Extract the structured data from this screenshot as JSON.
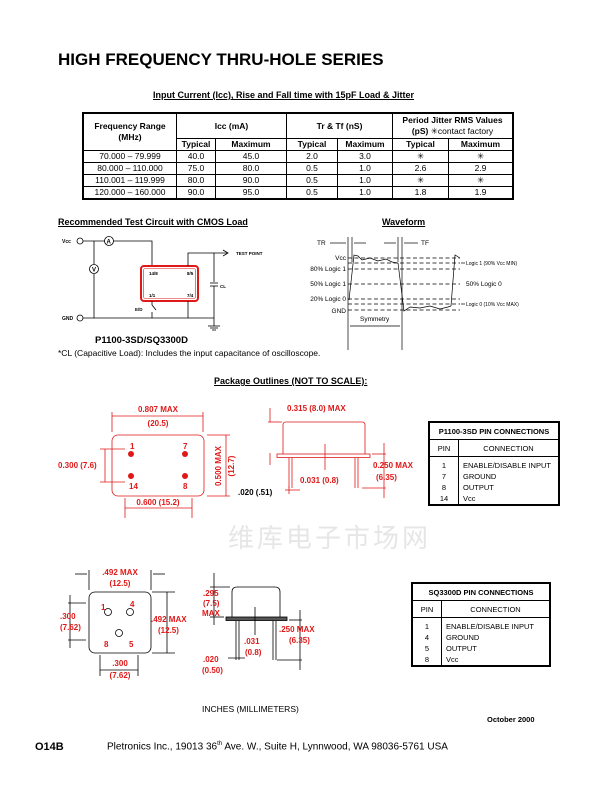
{
  "title": "HIGH FREQUENCY THRU-HOLE SERIES",
  "watermark": "维库电子市场网",
  "spec_table": {
    "caption": "Input Current (Icc), Rise and Fall time with 15pF Load & Jitter",
    "headers": {
      "freq": "Frequency Range",
      "freq_unit": "(MHz)",
      "icc": "Icc (mA)",
      "trtf": "Tr & Tf (nS)",
      "jitter": "Period Jitter RMS Values",
      "jitter_unit": "(pS)",
      "jitter_note": "✳contact factory",
      "typical": "Typical",
      "maximum": "Maximum"
    },
    "rows": [
      [
        "70.000 – 79.999",
        "40.0",
        "45.0",
        "2.0",
        "3.0",
        "✳",
        "✳"
      ],
      [
        "80.000 – 110.000",
        "75.0",
        "80.0",
        "0.5",
        "1.0",
        "2.6",
        "2.9"
      ],
      [
        "110.001 – 119.999",
        "80.0",
        "90.0",
        "0.5",
        "1.0",
        "✳",
        "✳"
      ],
      [
        "120.000 – 160.000",
        "90.0",
        "95.0",
        "0.5",
        "1.0",
        "1.8",
        "1.9"
      ]
    ]
  },
  "test_circuit": {
    "heading": "Recommended Test Circuit with CMOS Load",
    "vcc": "Vcc",
    "gnd": "GND",
    "ammeter": "A",
    "voltmeter": "V",
    "test_point": "TEST POINT",
    "cl": "CL",
    "switch": "E/D",
    "pins": [
      "14/8",
      "8/5",
      "1/1",
      "7/4"
    ],
    "part": "P1100-3SD/SQ3300D",
    "note": "*CL (Capacitive Load): Includes the input capacitance of oscilloscope."
  },
  "waveform": {
    "heading": "Waveform",
    "tr": "TR",
    "tf": "TF",
    "levels": [
      "Vcc",
      "80% Logic 1",
      "50% Logic 1",
      "20% Logic 0",
      "GND"
    ],
    "right_labels": [
      "Logic 1 (90% Vcc MIN)",
      "50% Logic 0",
      "Logic 0 (10% Vcc MAX)"
    ],
    "symmetry": "Symmetry"
  },
  "package": {
    "heading": "Package Outlines (NOT TO SCALE):",
    "p1100": {
      "width": "0.807 MAX",
      "width_mm": "(20.5)",
      "height": "0.500 MAX",
      "height_mm": "(12.7)",
      "pin_spacing_v": "0.300 (7.6)",
      "pin_spacing_h": "0.600 (15.2)",
      "body_height": "0.315 (8.0) MAX",
      "standoff": "0.031 (0.8)",
      "lead_len": "0.250 MAX",
      "lead_len_mm": "(6.35)",
      "lead_dia": ".020 (.51)",
      "pin_labels": [
        "1",
        "7",
        "14",
        "8"
      ]
    },
    "sq3300": {
      "width": ".492 MAX",
      "width_mm": "(12.5)",
      "height": ".492 MAX",
      "height_mm": "(12.5)",
      "pin_spacing_v": ".300",
      "pin_spacing_v_mm": "(7.62)",
      "pin_spacing_h": ".300",
      "pin_spacing_h_mm": "(7.62)",
      "body_height": ".295",
      "body_height_mm": "(7.5)",
      "body_height_max": "MAX",
      "standoff": ".031",
      "standoff_mm": "(0.8)",
      "lead_len": ".250 MAX",
      "lead_len_mm": "(6.35)",
      "lead_dia": ".020",
      "lead_dia_mm": "(0.50)",
      "pin_labels": [
        "1",
        "4",
        "8",
        "5"
      ]
    },
    "units": "INCHES (MILLIMETERS)"
  },
  "pin_tables": [
    {
      "title": "P1100-3SD PIN CONNECTIONS",
      "col_pin": "PIN",
      "col_conn": "CONNECTION",
      "rows": [
        [
          "1",
          "ENABLE/DISABLE INPUT"
        ],
        [
          "7",
          "GROUND"
        ],
        [
          "8",
          "OUTPUT"
        ],
        [
          "14",
          "Vcc"
        ]
      ]
    },
    {
      "title": "SQ3300D PIN CONNECTIONS",
      "col_pin": "PIN",
      "col_conn": "CONNECTION",
      "rows": [
        [
          "1",
          "ENABLE/DISABLE INPUT"
        ],
        [
          "4",
          "GROUND"
        ],
        [
          "5",
          "OUTPUT"
        ],
        [
          "8",
          "Vcc"
        ]
      ]
    }
  ],
  "date": "October 2000",
  "footer": {
    "code": "O14B",
    "address_pre": "Pletronics Inc., 19013 36",
    "address_sup": "th",
    "address_post": " Ave. W., Suite H, Lynnwood, WA 98036-5761 USA"
  },
  "colors": {
    "drawing": "#e01818",
    "text": "#000000"
  }
}
